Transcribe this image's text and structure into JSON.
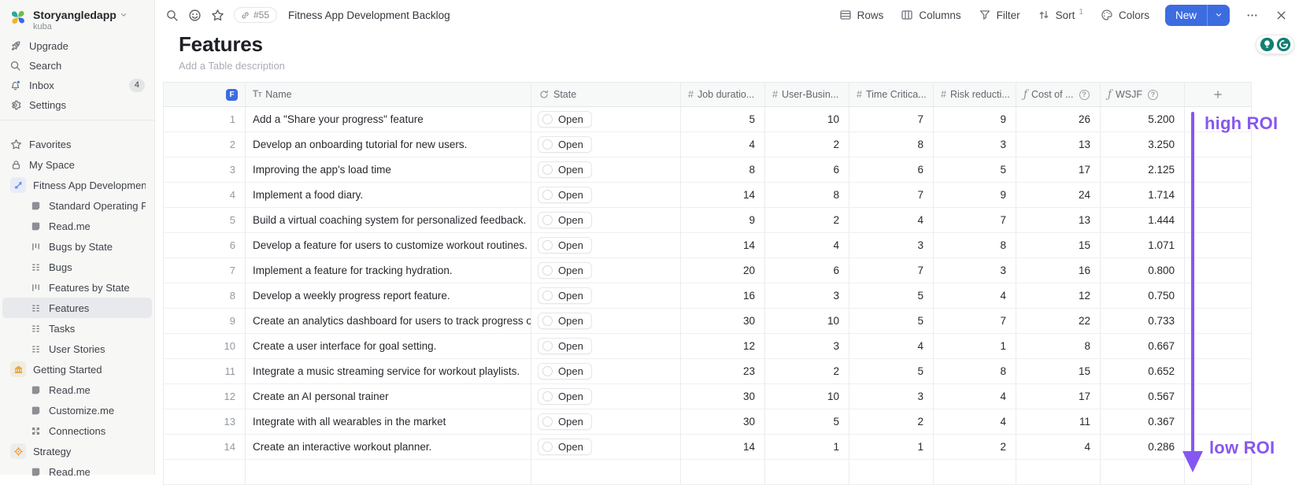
{
  "workspace": {
    "name": "Storyangledapp",
    "subtitle": "kuba"
  },
  "sidebar": {
    "primary": [
      {
        "id": "upgrade",
        "label": "Upgrade",
        "icon": "rocket-icon"
      },
      {
        "id": "search",
        "label": "Search",
        "icon": "search-icon"
      },
      {
        "id": "inbox",
        "label": "Inbox",
        "icon": "bell-icon",
        "badge": "4"
      },
      {
        "id": "settings",
        "label": "Settings",
        "icon": "gear-icon"
      }
    ],
    "tree": [
      {
        "label": "Favorites",
        "icon": "star-icon",
        "level": 0
      },
      {
        "label": "My Space",
        "icon": "lock-icon",
        "level": 0
      },
      {
        "label": "Fitness App Development...",
        "icon": "dumbbell-icon",
        "level": 0,
        "icon_bg": "#e7ecf8",
        "icon_color": "#3c6ce0"
      },
      {
        "label": "Standard Operating P...",
        "icon": "document-icon",
        "level": 1
      },
      {
        "label": "Read.me",
        "icon": "document-icon",
        "level": 1
      },
      {
        "label": "Bugs by State",
        "icon": "board-icon",
        "level": 1
      },
      {
        "label": "Bugs",
        "icon": "grid-icon",
        "level": 1
      },
      {
        "label": "Features by State",
        "icon": "board-icon",
        "level": 1
      },
      {
        "label": "Features",
        "icon": "grid-icon",
        "level": 1,
        "selected": true
      },
      {
        "label": "Tasks",
        "icon": "grid-icon",
        "level": 1
      },
      {
        "label": "User Stories",
        "icon": "grid-icon",
        "level": 1
      },
      {
        "label": "Getting Started",
        "icon": "building-icon",
        "level": 0,
        "icon_bg": "#f1ece1",
        "icon_color": "#e2a33c"
      },
      {
        "label": "Read.me",
        "icon": "document-icon",
        "level": 1
      },
      {
        "label": "Customize.me",
        "icon": "document-icon",
        "level": 1
      },
      {
        "label": "Connections",
        "icon": "expand-arrows-icon",
        "level": 1
      },
      {
        "label": "Strategy",
        "icon": "target-icon",
        "level": 0,
        "icon_bg": "#eeedea",
        "icon_color": "#e8932c"
      },
      {
        "label": "Read.me",
        "icon": "document-icon",
        "level": 1
      }
    ]
  },
  "topbar": {
    "ref": "#55",
    "title": "Fitness App Development Backlog",
    "actions": [
      {
        "label": "Rows",
        "icon": "rows-icon"
      },
      {
        "label": "Columns",
        "icon": "columns-icon"
      },
      {
        "label": "Filter",
        "icon": "filter-icon"
      },
      {
        "label": "Sort",
        "icon": "sort-icon",
        "sup": "1"
      },
      {
        "label": "Colors",
        "icon": "palette-icon"
      }
    ],
    "new_label": "New"
  },
  "page": {
    "title": "Features",
    "description_placeholder": "Add a Table description"
  },
  "table": {
    "entity_letter": "F",
    "columns": [
      {
        "label": "Name",
        "icon": "text-type-icon"
      },
      {
        "label": "State",
        "icon": "workflow-icon"
      },
      {
        "label": "Job duratio...",
        "icon": "number-icon"
      },
      {
        "label": "User-Busin...",
        "icon": "number-icon"
      },
      {
        "label": "Time Critica...",
        "icon": "number-icon"
      },
      {
        "label": "Risk reducti...",
        "icon": "number-icon"
      },
      {
        "label": "Cost of ...",
        "icon": "formula-icon",
        "info": true
      },
      {
        "label": "WSJF",
        "icon": "formula-icon",
        "info": true
      }
    ],
    "rows": [
      {
        "num": "1",
        "name": "Add a \"Share your progress\" feature",
        "state": "Open",
        "job_duration": "5",
        "user_business": "10",
        "time_criticality": "7",
        "risk_reduction": "9",
        "cost": "26",
        "wsjf": "5.200"
      },
      {
        "num": "2",
        "name": "Develop an onboarding tutorial for new users.",
        "state": "Open",
        "job_duration": "4",
        "user_business": "2",
        "time_criticality": "8",
        "risk_reduction": "3",
        "cost": "13",
        "wsjf": "3.250"
      },
      {
        "num": "3",
        "name": "Improving the app's load time",
        "state": "Open",
        "job_duration": "8",
        "user_business": "6",
        "time_criticality": "6",
        "risk_reduction": "5",
        "cost": "17",
        "wsjf": "2.125"
      },
      {
        "num": "4",
        "name": "Implement a food diary.",
        "state": "Open",
        "job_duration": "14",
        "user_business": "8",
        "time_criticality": "7",
        "risk_reduction": "9",
        "cost": "24",
        "wsjf": "1.714"
      },
      {
        "num": "5",
        "name": "Build a virtual coaching system for personalized feedback.",
        "state": "Open",
        "job_duration": "9",
        "user_business": "2",
        "time_criticality": "4",
        "risk_reduction": "7",
        "cost": "13",
        "wsjf": "1.444"
      },
      {
        "num": "6",
        "name": "Develop a feature for users to customize workout routines.",
        "state": "Open",
        "job_duration": "14",
        "user_business": "4",
        "time_criticality": "3",
        "risk_reduction": "8",
        "cost": "15",
        "wsjf": "1.071"
      },
      {
        "num": "7",
        "name": "Implement a feature for tracking hydration.",
        "state": "Open",
        "job_duration": "20",
        "user_business": "6",
        "time_criticality": "7",
        "risk_reduction": "3",
        "cost": "16",
        "wsjf": "0.800"
      },
      {
        "num": "8",
        "name": "Develop a weekly progress report feature.",
        "state": "Open",
        "job_duration": "16",
        "user_business": "3",
        "time_criticality": "5",
        "risk_reduction": "4",
        "cost": "12",
        "wsjf": "0.750"
      },
      {
        "num": "9",
        "name": "Create an analytics dashboard for users to track progress over ti",
        "state": "Open",
        "job_duration": "30",
        "user_business": "10",
        "time_criticality": "5",
        "risk_reduction": "7",
        "cost": "22",
        "wsjf": "0.733"
      },
      {
        "num": "10",
        "name": "Create a user interface for goal setting.",
        "state": "Open",
        "job_duration": "12",
        "user_business": "3",
        "time_criticality": "4",
        "risk_reduction": "1",
        "cost": "8",
        "wsjf": "0.667"
      },
      {
        "num": "11",
        "name": "Integrate a music streaming service for workout playlists.",
        "state": "Open",
        "job_duration": "23",
        "user_business": "2",
        "time_criticality": "5",
        "risk_reduction": "8",
        "cost": "15",
        "wsjf": "0.652"
      },
      {
        "num": "12",
        "name": "Create an AI personal trainer",
        "state": "Open",
        "job_duration": "30",
        "user_business": "10",
        "time_criticality": "3",
        "risk_reduction": "4",
        "cost": "17",
        "wsjf": "0.567"
      },
      {
        "num": "13",
        "name": "Integrate with all wearables in the market",
        "state": "Open",
        "job_duration": "30",
        "user_business": "5",
        "time_criticality": "2",
        "risk_reduction": "4",
        "cost": "11",
        "wsjf": "0.367"
      },
      {
        "num": "14",
        "name": "Create an interactive workout planner.",
        "state": "Open",
        "job_duration": "14",
        "user_business": "1",
        "time_criticality": "1",
        "risk_reduction": "2",
        "cost": "4",
        "wsjf": "0.286"
      }
    ]
  },
  "annotation": {
    "high": "high ROI",
    "low": "low ROI",
    "color": "#8657f0"
  },
  "accent": {
    "primary_blue": "#3c6ce0",
    "assistant_teal": "#108073"
  }
}
